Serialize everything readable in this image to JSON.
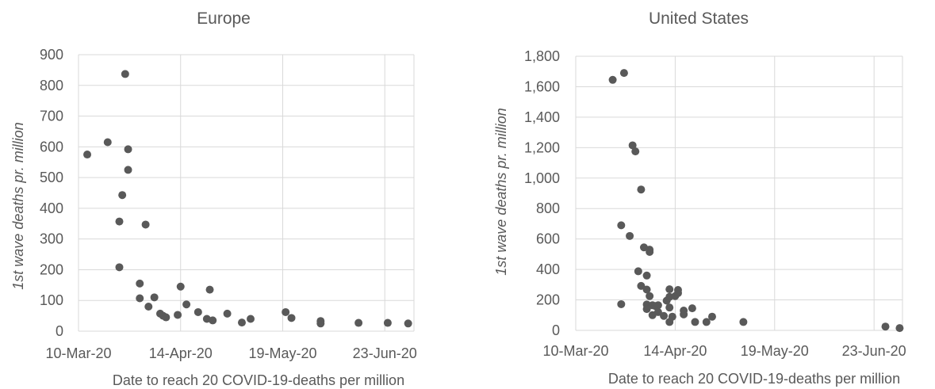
{
  "chart_data": [
    {
      "type": "scatter",
      "title": "Europe",
      "xlabel": "Date to reach 20 COVID-19-deaths per million",
      "ylabel_italic": "1st wave deaths",
      "ylabel_rest": " pr. million",
      "xlim": [
        "2020-03-10",
        "2020-07-03"
      ],
      "ylim": [
        0,
        900
      ],
      "xticks": [
        {
          "date": "2020-03-10",
          "label": "10-Mar-20"
        },
        {
          "date": "2020-04-14",
          "label": "14-Apr-20"
        },
        {
          "date": "2020-05-19",
          "label": "19-May-20"
        },
        {
          "date": "2020-06-23",
          "label": "23-Jun-20"
        }
      ],
      "yticks": [
        {
          "value": 0,
          "label": "0"
        },
        {
          "value": 100,
          "label": "100"
        },
        {
          "value": 200,
          "label": "200"
        },
        {
          "value": 300,
          "label": "300"
        },
        {
          "value": 400,
          "label": "400"
        },
        {
          "value": 500,
          "label": "500"
        },
        {
          "value": 600,
          "label": "600"
        },
        {
          "value": 700,
          "label": "700"
        },
        {
          "value": 800,
          "label": "800"
        },
        {
          "value": 900,
          "label": "900"
        }
      ],
      "grid": true,
      "marker_color": "#595959",
      "points": [
        {
          "x": "2020-03-13",
          "y": 575
        },
        {
          "x": "2020-03-20",
          "y": 615
        },
        {
          "x": "2020-03-24",
          "y": 357
        },
        {
          "x": "2020-03-24",
          "y": 208
        },
        {
          "x": "2020-03-25",
          "y": 443
        },
        {
          "x": "2020-03-26",
          "y": 837
        },
        {
          "x": "2020-03-27",
          "y": 592
        },
        {
          "x": "2020-03-27",
          "y": 525
        },
        {
          "x": "2020-03-31",
          "y": 155
        },
        {
          "x": "2020-03-31",
          "y": 107
        },
        {
          "x": "2020-04-02",
          "y": 347
        },
        {
          "x": "2020-04-03",
          "y": 80
        },
        {
          "x": "2020-04-05",
          "y": 110
        },
        {
          "x": "2020-04-07",
          "y": 57
        },
        {
          "x": "2020-04-08",
          "y": 50
        },
        {
          "x": "2020-04-09",
          "y": 45
        },
        {
          "x": "2020-04-13",
          "y": 53
        },
        {
          "x": "2020-04-14",
          "y": 145
        },
        {
          "x": "2020-04-16",
          "y": 87
        },
        {
          "x": "2020-04-20",
          "y": 62
        },
        {
          "x": "2020-04-23",
          "y": 40
        },
        {
          "x": "2020-04-24",
          "y": 135
        },
        {
          "x": "2020-04-25",
          "y": 35
        },
        {
          "x": "2020-04-30",
          "y": 57
        },
        {
          "x": "2020-05-05",
          "y": 28
        },
        {
          "x": "2020-05-08",
          "y": 40
        },
        {
          "x": "2020-05-20",
          "y": 62
        },
        {
          "x": "2020-05-22",
          "y": 43
        },
        {
          "x": "2020-06-01",
          "y": 33
        },
        {
          "x": "2020-06-01",
          "y": 25
        },
        {
          "x": "2020-06-14",
          "y": 27
        },
        {
          "x": "2020-06-24",
          "y": 27
        },
        {
          "x": "2020-07-01",
          "y": 25
        }
      ]
    },
    {
      "type": "scatter",
      "title": "United States",
      "xlabel": "Date to reach 20 COVID-19-deaths per million",
      "ylabel_italic": "1st wave deaths",
      "ylabel_rest": " pr. million",
      "xlim": [
        "2020-03-10",
        "2020-07-03"
      ],
      "ylim": [
        0,
        1800
      ],
      "xticks": [
        {
          "date": "2020-03-10",
          "label": "10-Mar-20"
        },
        {
          "date": "2020-04-14",
          "label": "14-Apr-20"
        },
        {
          "date": "2020-05-19",
          "label": "19-May-20"
        },
        {
          "date": "2020-06-23",
          "label": "23-Jun-20"
        }
      ],
      "yticks": [
        {
          "value": 0,
          "label": "0"
        },
        {
          "value": 200,
          "label": "200"
        },
        {
          "value": 400,
          "label": "400"
        },
        {
          "value": 600,
          "label": "600"
        },
        {
          "value": 800,
          "label": "800"
        },
        {
          "value": 1000,
          "label": "1,000"
        },
        {
          "value": 1200,
          "label": "1,200"
        },
        {
          "value": 1400,
          "label": "1,400"
        },
        {
          "value": 1600,
          "label": "1,600"
        },
        {
          "value": 1800,
          "label": "1,800"
        }
      ],
      "grid": true,
      "marker_color": "#595959",
      "points": [
        {
          "x": "2020-03-23",
          "y": 1645
        },
        {
          "x": "2020-03-27",
          "y": 1690
        },
        {
          "x": "2020-03-30",
          "y": 1215
        },
        {
          "x": "2020-03-31",
          "y": 1175
        },
        {
          "x": "2020-04-02",
          "y": 925
        },
        {
          "x": "2020-03-26",
          "y": 690
        },
        {
          "x": "2020-03-29",
          "y": 620
        },
        {
          "x": "2020-04-03",
          "y": 545
        },
        {
          "x": "2020-04-05",
          "y": 530
        },
        {
          "x": "2020-04-05",
          "y": 515
        },
        {
          "x": "2020-03-26",
          "y": 172
        },
        {
          "x": "2020-04-01",
          "y": 388
        },
        {
          "x": "2020-04-04",
          "y": 360
        },
        {
          "x": "2020-04-02",
          "y": 292
        },
        {
          "x": "2020-04-04",
          "y": 268
        },
        {
          "x": "2020-04-05",
          "y": 225
        },
        {
          "x": "2020-04-04",
          "y": 170
        },
        {
          "x": "2020-04-04",
          "y": 140
        },
        {
          "x": "2020-04-06",
          "y": 165
        },
        {
          "x": "2020-04-07",
          "y": 160
        },
        {
          "x": "2020-04-08",
          "y": 165
        },
        {
          "x": "2020-04-06",
          "y": 100
        },
        {
          "x": "2020-04-08",
          "y": 120
        },
        {
          "x": "2020-04-10",
          "y": 95
        },
        {
          "x": "2020-04-11",
          "y": 195
        },
        {
          "x": "2020-04-12",
          "y": 270
        },
        {
          "x": "2020-04-12",
          "y": 220
        },
        {
          "x": "2020-04-12",
          "y": 150
        },
        {
          "x": "2020-04-12",
          "y": 55
        },
        {
          "x": "2020-04-13",
          "y": 90
        },
        {
          "x": "2020-04-14",
          "y": 225
        },
        {
          "x": "2020-04-15",
          "y": 245
        },
        {
          "x": "2020-04-15",
          "y": 265
        },
        {
          "x": "2020-04-17",
          "y": 130
        },
        {
          "x": "2020-04-17",
          "y": 105
        },
        {
          "x": "2020-04-20",
          "y": 145
        },
        {
          "x": "2020-04-21",
          "y": 55
        },
        {
          "x": "2020-04-25",
          "y": 55
        },
        {
          "x": "2020-04-27",
          "y": 90
        },
        {
          "x": "2020-05-08",
          "y": 55
        },
        {
          "x": "2020-06-27",
          "y": 25
        },
        {
          "x": "2020-07-02",
          "y": 15
        }
      ]
    }
  ]
}
